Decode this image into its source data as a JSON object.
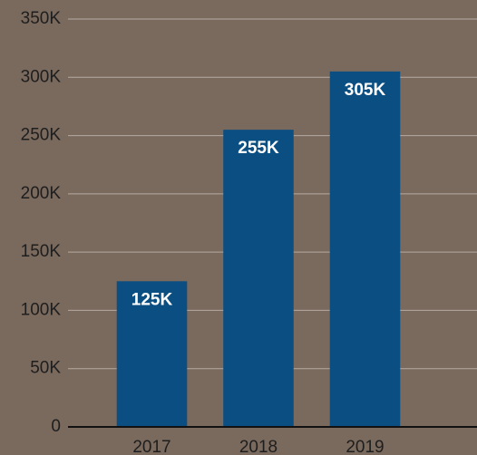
{
  "chart_data": {
    "type": "bar",
    "categories": [
      "2017",
      "2018",
      "2019"
    ],
    "values": [
      125000,
      255000,
      305000
    ],
    "value_labels": [
      "125K",
      "255K",
      "305K"
    ],
    "color": "#0b4f82",
    "ylim": [
      0,
      350000
    ],
    "yticks": [
      0,
      {
        "value": 50000,
        "label": "50K"
      },
      {
        "value": 100000,
        "label": "100K"
      },
      {
        "value": 150000,
        "label": "150K"
      },
      {
        "value": 200000,
        "label": "200K"
      },
      {
        "value": 250000,
        "label": "250K"
      },
      {
        "value": 300000,
        "label": "300K"
      },
      {
        "value": 350000,
        "label": "350K"
      }
    ],
    "grid": true
  }
}
